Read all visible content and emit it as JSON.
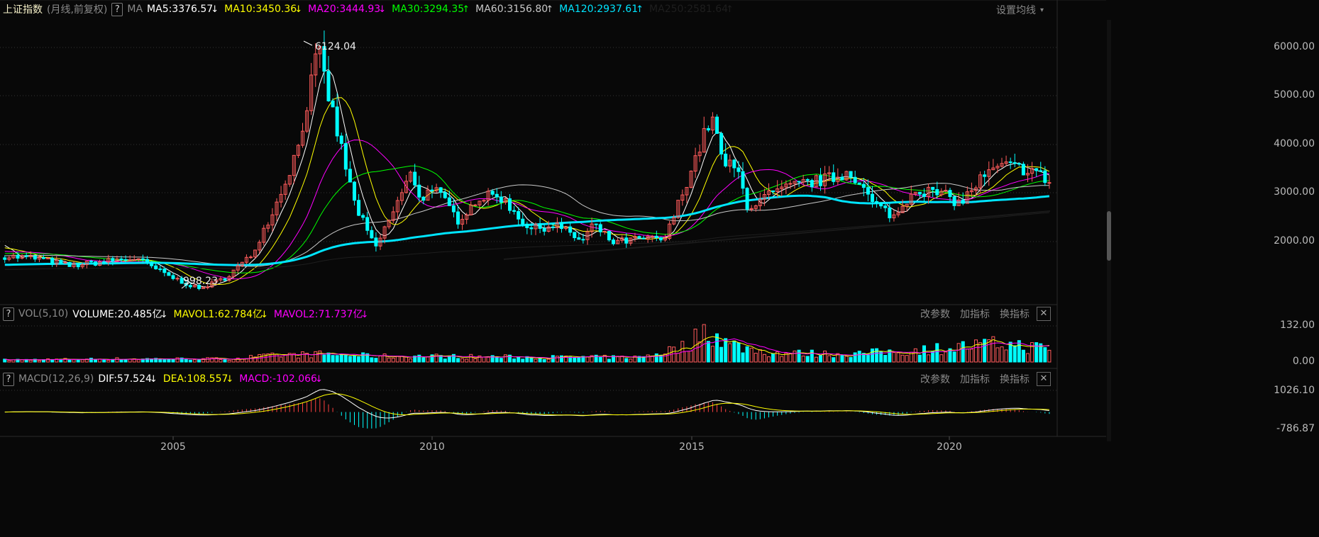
{
  "header": {
    "symbol": "上证指数",
    "mode": "(月线,前复权)",
    "help": "?",
    "indicator": "MA",
    "ma": [
      {
        "label": "MA5:3376.57",
        "arrow": "↓",
        "color": "#ffffff",
        "period": 5
      },
      {
        "label": "MA10:3450.36",
        "arrow": "↓",
        "color": "#ffff00",
        "period": 10
      },
      {
        "label": "MA20:3444.93",
        "arrow": "↓",
        "color": "#ff00ff",
        "period": 20
      },
      {
        "label": "MA30:3294.35",
        "arrow": "↑",
        "color": "#00ff00",
        "period": 30
      },
      {
        "label": "MA60:3156.80",
        "arrow": "↑",
        "color": "#c8c8c8",
        "period": 60
      },
      {
        "label": "MA120:2937.61",
        "arrow": "↑",
        "color": "#00e5ff",
        "period": 120
      },
      {
        "label": "MA250:2581.64",
        "arrow": "↑",
        "color": "#1e1e1e",
        "period": 250
      }
    ],
    "settings": "设置均线",
    "settings_caret": "▾"
  },
  "price_axis": [
    "6000.00",
    "5000.00",
    "4000.00",
    "3000.00",
    "2000.00"
  ],
  "annotations": {
    "high": "6124.04",
    "low": "998.23"
  },
  "volume_panel": {
    "help": "?",
    "name": "VOL(5,10)",
    "items": [
      {
        "label": "VOLUME:20.485亿",
        "arrow": "↓",
        "color": "#ffffff"
      },
      {
        "label": "MAVOL1:62.784亿",
        "arrow": "↓",
        "color": "#ffff00"
      },
      {
        "label": "MAVOL2:71.737亿",
        "arrow": "↓",
        "color": "#ff00ff"
      }
    ],
    "axis": [
      "132.00",
      "0.00"
    ]
  },
  "macd_panel": {
    "help": "?",
    "name": "MACD(12,26,9)",
    "items": [
      {
        "label": "DIF:57.524",
        "arrow": "↓",
        "color": "#ffffff"
      },
      {
        "label": "DEA:108.557",
        "arrow": "↓",
        "color": "#ffff00"
      },
      {
        "label": "MACD:-102.066",
        "arrow": "↓",
        "color": "#ff00ff"
      }
    ],
    "axis": [
      "1026.10",
      "-786.87"
    ]
  },
  "panel_tools": {
    "modify": "改参数",
    "add": "加指标",
    "switch": "换指标",
    "close": "✕"
  },
  "time_axis": [
    "2005",
    "2010",
    "2015",
    "2020"
  ],
  "colors": {
    "up": "#ff5b5b",
    "down": "#00ffff",
    "background": "#080808"
  },
  "price_path": [
    [
      2001.75,
      1700
    ],
    [
      2002.4,
      1650
    ],
    [
      2003.0,
      1500
    ],
    [
      2003.9,
      1620
    ],
    [
      2004.3,
      1650
    ],
    [
      2004.9,
      1300
    ],
    [
      2005.5,
      1020
    ],
    [
      2006.0,
      1250
    ],
    [
      2006.5,
      1700
    ],
    [
      2007.0,
      2800
    ],
    [
      2007.4,
      3900
    ],
    [
      2007.8,
      5950
    ],
    [
      2008.0,
      5000
    ],
    [
      2008.5,
      2800
    ],
    [
      2008.9,
      1850
    ],
    [
      2009.6,
      3400
    ],
    [
      2009.8,
      2850
    ],
    [
      2010.0,
      3150
    ],
    [
      2010.5,
      2450
    ],
    [
      2010.9,
      2900
    ],
    [
      2011.3,
      2950
    ],
    [
      2011.9,
      2250
    ],
    [
      2012.4,
      2350
    ],
    [
      2012.9,
      2000
    ],
    [
      2013.1,
      2350
    ],
    [
      2013.5,
      1980
    ],
    [
      2014.0,
      2050
    ],
    [
      2014.5,
      2050
    ],
    [
      2014.9,
      3200
    ],
    [
      2015.4,
      4600
    ],
    [
      2015.6,
      3650
    ],
    [
      2015.9,
      3450
    ],
    [
      2016.1,
      2700
    ],
    [
      2016.5,
      2950
    ],
    [
      2017.0,
      3150
    ],
    [
      2017.9,
      3350
    ],
    [
      2018.05,
      3500
    ],
    [
      2018.5,
      2800
    ],
    [
      2018.95,
      2500
    ],
    [
      2019.3,
      3100
    ],
    [
      2019.9,
      2950
    ],
    [
      2020.2,
      2780
    ],
    [
      2020.6,
      3300
    ],
    [
      2021.0,
      3550
    ],
    [
      2021.6,
      3480
    ],
    [
      2021.95,
      3200
    ]
  ],
  "volume_path": [
    [
      2001.75,
      8
    ],
    [
      2004.0,
      12
    ],
    [
      2006.0,
      12
    ],
    [
      2007.0,
      25
    ],
    [
      2007.8,
      30
    ],
    [
      2009.0,
      22
    ],
    [
      2010.0,
      22
    ],
    [
      2012.0,
      18
    ],
    [
      2014.0,
      18
    ],
    [
      2014.9,
      60
    ],
    [
      2015.3,
      130
    ],
    [
      2015.7,
      70
    ],
    [
      2016.5,
      35
    ],
    [
      2018.0,
      30
    ],
    [
      2019.0,
      40
    ],
    [
      2020.0,
      55
    ],
    [
      2021.0,
      70
    ],
    [
      2021.95,
      50
    ]
  ]
}
